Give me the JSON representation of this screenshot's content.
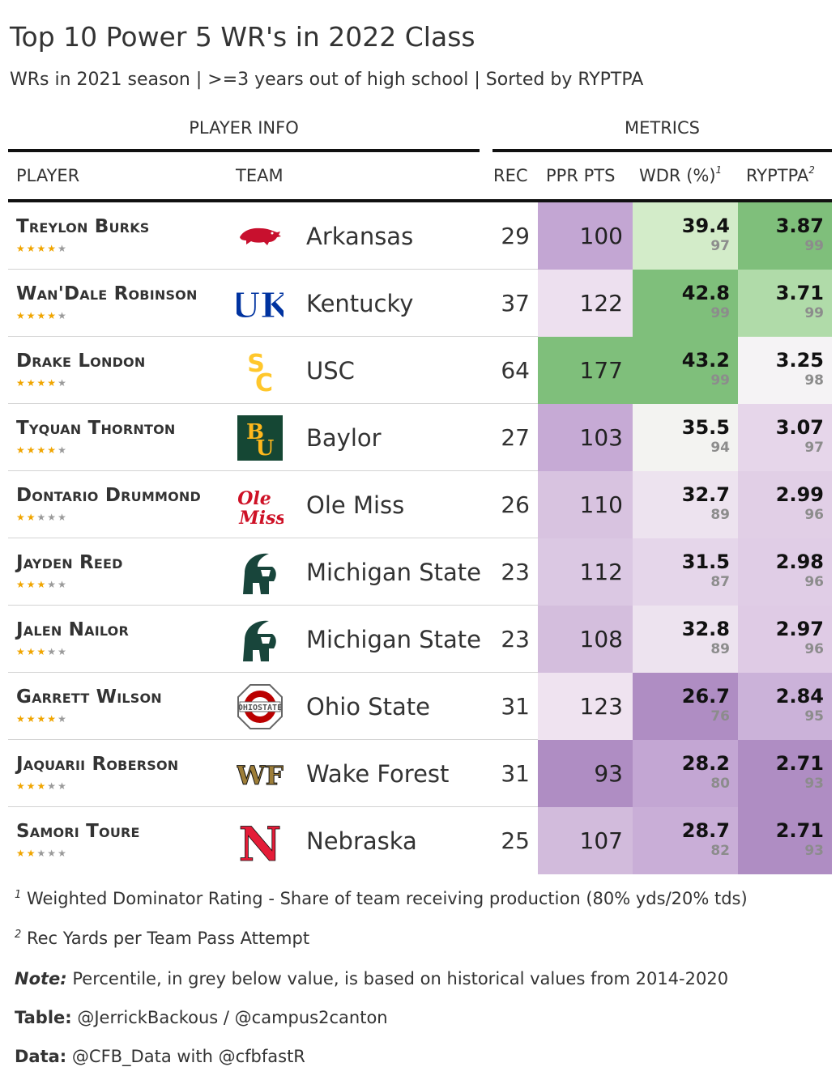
{
  "title": "Top 10 Power 5 WR's in 2022 Class",
  "subtitle": "WRs in 2021 season | >=3 years out of high school | Sorted by RYPTPA",
  "spanners": {
    "player_info": "PLAYER INFO",
    "metrics": "METRICS"
  },
  "columns": {
    "player": "PLAYER",
    "team": "TEAM",
    "rec": "REC",
    "ppr": "PPR PTS",
    "wdr": "WDR (%)",
    "wdr_sup": "1",
    "ryptpa": "RYPTPA",
    "ryptpa_sup": "2"
  },
  "rows": [
    {
      "player": "Treylon Burks",
      "stars": 4,
      "team": "Arkansas",
      "logo": "arkansas-razorback-logo",
      "rec": "29",
      "ppr": "100",
      "wdr": "39.4",
      "wdr_pct": "97",
      "ryptpa": "3.87",
      "ryptpa_pct": "99",
      "ppr_color": "#c3a6d3",
      "wdr_color": "#d3ecc9",
      "ryptpa_color": "#7fbf7b"
    },
    {
      "player": "Wan'Dale Robinson",
      "stars": 4,
      "team": "Kentucky",
      "logo": "kentucky-uk-logo",
      "rec": "37",
      "ppr": "122",
      "wdr": "42.8",
      "wdr_pct": "99",
      "ryptpa": "3.71",
      "ryptpa_pct": "99",
      "ppr_color": "#ede0ef",
      "wdr_color": "#7fbf7b",
      "ryptpa_color": "#b0dba9"
    },
    {
      "player": "Drake London",
      "stars": 4,
      "team": "USC",
      "logo": "usc-sc-logo",
      "rec": "64",
      "ppr": "177",
      "wdr": "43.2",
      "wdr_pct": "99",
      "ryptpa": "3.25",
      "ryptpa_pct": "98",
      "ppr_color": "#7fbf7b",
      "wdr_color": "#7fbf7b",
      "ryptpa_color": "#f5f3f5"
    },
    {
      "player": "Tyquan Thornton",
      "stars": 4,
      "team": "Baylor",
      "logo": "baylor-bu-logo",
      "rec": "27",
      "ppr": "103",
      "wdr": "35.5",
      "wdr_pct": "94",
      "ryptpa": "3.07",
      "ryptpa_pct": "97",
      "ppr_color": "#c6aad5",
      "wdr_color": "#f3f3f1",
      "ryptpa_color": "#e6d6ea"
    },
    {
      "player": "Dontario Drummond",
      "stars": 2,
      "team": "Ole Miss",
      "logo": "ole-miss-logo",
      "rec": "26",
      "ppr": "110",
      "wdr": "32.7",
      "wdr_pct": "89",
      "ryptpa": "2.99",
      "ryptpa_pct": "96",
      "ppr_color": "#d8c3e0",
      "wdr_color": "#ede3ef",
      "ryptpa_color": "#e1cfe6"
    },
    {
      "player": "Jayden Reed",
      "stars": 3,
      "team": "Michigan State",
      "logo": "michigan-state-spartan-logo",
      "rec": "23",
      "ppr": "112",
      "wdr": "31.5",
      "wdr_pct": "87",
      "ryptpa": "2.98",
      "ryptpa_pct": "96",
      "ppr_color": "#dbc8e3",
      "wdr_color": "#e5d6ea",
      "ryptpa_color": "#e0cde6"
    },
    {
      "player": "Jalen Nailor",
      "stars": 3,
      "team": "Michigan State",
      "logo": "michigan-state-spartan-logo",
      "rec": "23",
      "ppr": "108",
      "wdr": "32.8",
      "wdr_pct": "89",
      "ryptpa": "2.97",
      "ryptpa_pct": "96",
      "ppr_color": "#d4bedd",
      "wdr_color": "#ede3ef",
      "ryptpa_color": "#dfcbe5"
    },
    {
      "player": "Garrett Wilson",
      "stars": 4,
      "team": "Ohio State",
      "logo": "ohio-state-logo",
      "rec": "31",
      "ppr": "123",
      "wdr": "26.7",
      "wdr_pct": "76",
      "ryptpa": "2.84",
      "ryptpa_pct": "95",
      "ppr_color": "#efe3f0",
      "wdr_color": "#af8dc3",
      "ryptpa_color": "#cbb2d9"
    },
    {
      "player": "Jaquarii Roberson",
      "stars": 3,
      "team": "Wake Forest",
      "logo": "wake-forest-wf-logo",
      "rec": "31",
      "ppr": "93",
      "wdr": "28.2",
      "wdr_pct": "80",
      "ryptpa": "2.71",
      "ryptpa_pct": "93",
      "ppr_color": "#af8dc3",
      "wdr_color": "#c3a6d3",
      "ryptpa_color": "#af8dc3"
    },
    {
      "player": "Samori Toure",
      "stars": 2,
      "team": "Nebraska",
      "logo": "nebraska-n-logo",
      "rec": "25",
      "ppr": "107",
      "wdr": "28.7",
      "wdr_pct": "82",
      "ryptpa": "2.71",
      "ryptpa_pct": "93",
      "ppr_color": "#d2bbdc",
      "wdr_color": "#c9aed7",
      "ryptpa_color": "#af8dc3"
    }
  ],
  "footnotes": {
    "fn1_mark": "1",
    "fn1": "Weighted Dominator Rating - Share of team receiving production (80% yds/20% tds)",
    "fn2_mark": "2",
    "fn2": "Rec Yards per Team Pass Attempt",
    "note_label": "Note:",
    "note": "Percentile, in grey below value, is based on historical values from 2014-2020",
    "table_label": "Table:",
    "table": "@JerrickBackous / @campus2canton",
    "data_label": "Data:",
    "data": "@CFB_Data with @cfbfastR"
  }
}
